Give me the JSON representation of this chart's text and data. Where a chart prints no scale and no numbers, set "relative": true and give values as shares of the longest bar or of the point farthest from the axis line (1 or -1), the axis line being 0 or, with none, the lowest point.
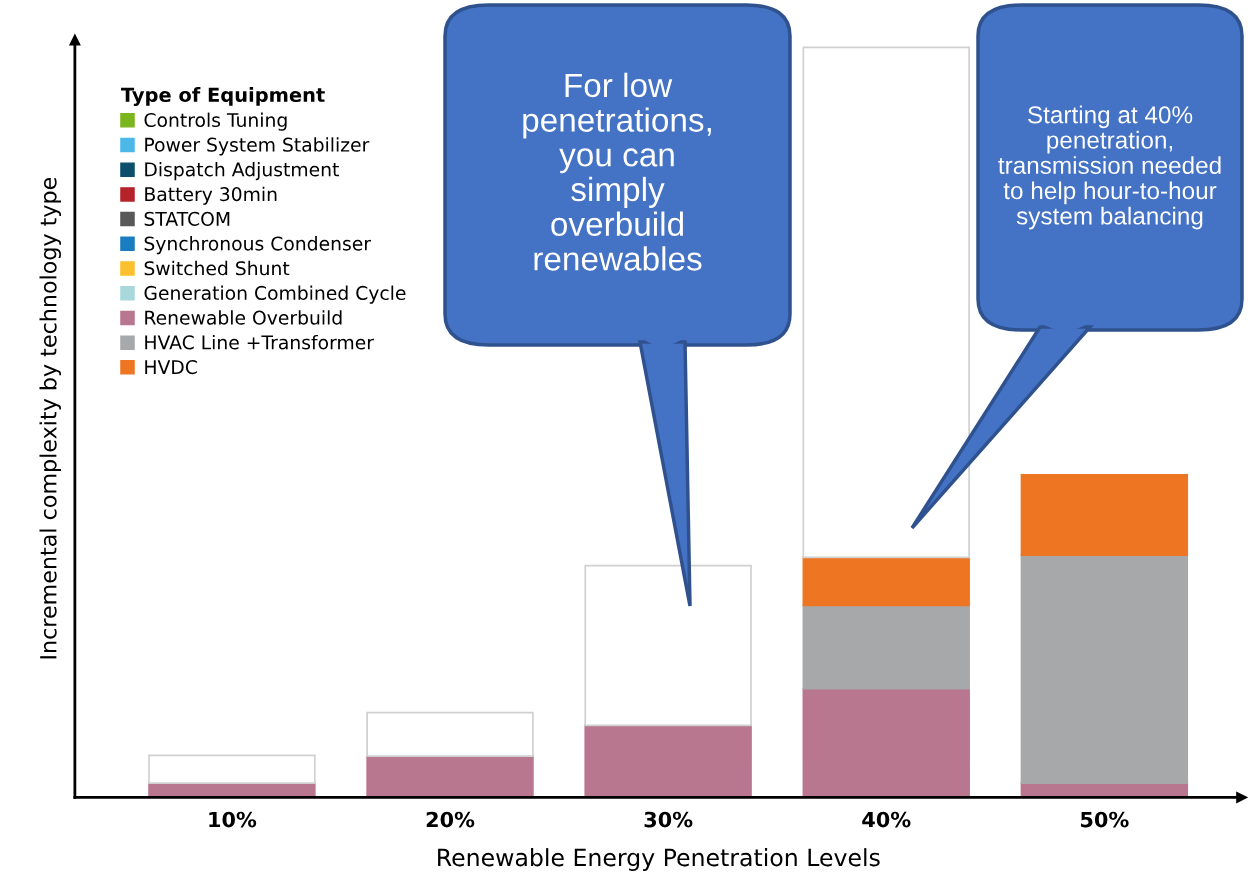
{
  "chart_data": {
    "type": "bar",
    "stacked": true,
    "relative": true,
    "xlabel": "Renewable Energy Penetration Levels",
    "ylabel": "Incremental complexity by technology type",
    "legend_title": "Type of Equipment",
    "legend": "top left",
    "categories": [
      "10%",
      "20%",
      "30%",
      "40%",
      "50%"
    ],
    "series": [
      {
        "name": "Controls Tuning",
        "color": "#7ab51d",
        "values": [
          null,
          null,
          null,
          null,
          null
        ]
      },
      {
        "name": "Power System Stabilizer",
        "color": "#4bb8e8",
        "values": [
          null,
          null,
          null,
          null,
          null
        ]
      },
      {
        "name": "Dispatch Adjustment",
        "color": "#0b4f6c",
        "values": [
          null,
          null,
          null,
          null,
          null
        ]
      },
      {
        "name": "Battery 30min",
        "color": "#b5232a",
        "values": [
          null,
          null,
          null,
          null,
          null
        ]
      },
      {
        "name": "STATCOM",
        "color": "#595959",
        "values": [
          null,
          null,
          null,
          null,
          null
        ]
      },
      {
        "name": "Synchronous Condenser",
        "color": "#1a7cc1",
        "values": [
          null,
          null,
          null,
          null,
          null
        ]
      },
      {
        "name": "Switched Shunt",
        "color": "#fbc02d",
        "values": [
          null,
          null,
          null,
          null,
          null
        ]
      },
      {
        "name": "Generation Combined Cycle",
        "color": "#a8d8dc",
        "values": [
          null,
          null,
          null,
          null,
          null
        ]
      },
      {
        "name": "Renewable Overbuild",
        "color": "#b9768f",
        "values": [
          0.019,
          0.055,
          0.096,
          0.145,
          0.019
        ]
      },
      {
        "name": "HVAC Line +Transformer",
        "color": "#a7a8aa",
        "values": [
          null,
          null,
          null,
          0.111,
          0.304
        ]
      },
      {
        "name": "HVDC",
        "color": "#ee7623",
        "values": [
          null,
          null,
          null,
          0.064,
          0.107
        ]
      },
      {
        "color": "#ffffff",
        "values": [
          0.037,
          0.058,
          0.213,
          0.68,
          null
        ]
      }
    ],
    "annotations": [
      "For low\npenetrations,\nyou can\nsimply\noverbuild\nrenewables",
      "Starting at 40%\npenetration,\ntransmission needed\nto help hour-to-hour\nsystem balancing"
    ]
  }
}
